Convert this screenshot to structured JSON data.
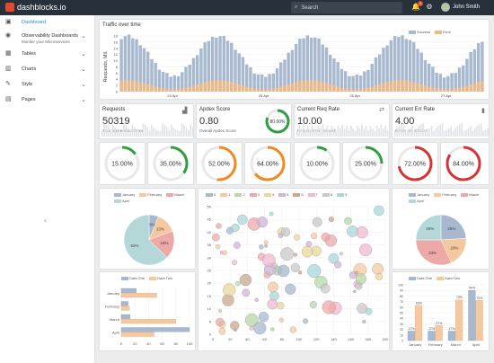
{
  "header": {
    "brand": "dashblocks.io",
    "search_placeholder": "Search",
    "notifications_count": "3",
    "user_name": "John Smith"
  },
  "sidebar": {
    "items": [
      {
        "label": "Dashboard",
        "icon": "dashboard-icon"
      },
      {
        "label": "Observability Dashboards",
        "sub": "Monitor your Microservices",
        "icon": "eye-icon"
      },
      {
        "label": "Tables",
        "icon": "table-icon"
      },
      {
        "label": "Charts",
        "icon": "chart-icon"
      },
      {
        "label": "Style",
        "icon": "brush-icon"
      },
      {
        "label": "Pages",
        "icon": "pages-icon"
      }
    ],
    "collapse_glyph": "‹"
  },
  "traffic": {
    "title": "Traffic over time",
    "ylabel": "Requests, Mil.",
    "legend": [
      "Success",
      "Error"
    ],
    "xticks": [
      "24 Apr",
      "25 Apr",
      "26 Apr",
      "27 Apr"
    ],
    "yticks": [
      "0",
      "2",
      "4",
      "6",
      "8",
      "10",
      "12",
      "14",
      "16",
      "18"
    ],
    "colors": {
      "success": "#a7b8cf",
      "error": "#e8b98a"
    }
  },
  "stats": [
    {
      "title": "Requests",
      "value": "50319",
      "sub": "Total requests received"
    },
    {
      "title": "Apdex Score",
      "value": "0.80",
      "sub": "Overall Apdex Score",
      "ring": "80.00%"
    },
    {
      "title": "Current Req Rate",
      "value": "10.00",
      "sub": "Requests per second"
    },
    {
      "title": "Current Err Rate",
      "value": "4.00",
      "sub": "Errors per second"
    }
  ],
  "rings": [
    {
      "label": "15.00%",
      "pct": 15,
      "color": "#2e9e3e"
    },
    {
      "label": "35.00%",
      "pct": 35,
      "color": "#2e9e3e"
    },
    {
      "label": "52.00%",
      "pct": 52,
      "color": "#f08a24"
    },
    {
      "label": "64.00%",
      "pct": 64,
      "color": "#f08a24"
    },
    {
      "label": "10.00%",
      "pct": 10,
      "color": "#2e9e3e"
    },
    {
      "label": "25.00%",
      "pct": 25,
      "color": "#2e9e3e"
    },
    {
      "label": "72.00%",
      "pct": 72,
      "color": "#d63333"
    },
    {
      "label": "84.00%",
      "pct": 84,
      "color": "#d63333"
    }
  ],
  "chart_data": [
    {
      "type": "pie",
      "legend": [
        "January",
        "February",
        "March",
        "April"
      ],
      "values": [
        6,
        13,
        18,
        62
      ],
      "labels": [
        "6%",
        "13%",
        "18%",
        "62%"
      ],
      "colors": [
        "#a7b8cf",
        "#f5c8a0",
        "#eda8a8",
        "#b4d8d8"
      ]
    },
    {
      "type": "scatter",
      "legend": [
        "0",
        "1",
        "2",
        "3",
        "4",
        "5",
        "6",
        "7",
        "8",
        "9"
      ],
      "xticks": [
        "0",
        "20",
        "40",
        "60",
        "80",
        "100",
        "120",
        "140",
        "160",
        "180",
        "200"
      ],
      "yticks": [
        "0",
        "5",
        "10",
        "15",
        "20",
        "25",
        "30",
        "35",
        "40",
        "45",
        "50"
      ]
    },
    {
      "type": "pie",
      "legend": [
        "January",
        "February",
        "March",
        "April"
      ],
      "values": [
        25,
        20,
        33,
        26
      ],
      "labels": [
        "25%",
        "20%",
        "33%",
        "26%"
      ],
      "colors": [
        "#a7b8cf",
        "#f5c8a0",
        "#eda8a8",
        "#b4d8d8"
      ]
    },
    {
      "type": "bar",
      "orientation": "horizontal",
      "categories": [
        "January",
        "February",
        "March",
        "April"
      ],
      "series": [
        {
          "name": "Data One",
          "values": [
            22,
            10,
            13,
            100
          ]
        },
        {
          "name": "Data Two",
          "values": [
            52,
            12,
            80,
            48
          ]
        }
      ],
      "xticks": [
        "0",
        "20",
        "40",
        "60",
        "80",
        "100"
      ]
    },
    {
      "type": "bar",
      "categories": [
        "January",
        "February",
        "March",
        "April"
      ],
      "series": [
        {
          "name": "Data One",
          "values": [
            17,
            17,
            17,
            90
          ]
        },
        {
          "name": "Data Two",
          "values": [
            63,
            27,
            73,
            72
          ]
        }
      ],
      "labels": [
        [
          "17%",
          "63%"
        ],
        [
          "17%",
          "27%"
        ],
        [
          "17%",
          "73%"
        ],
        [
          "90%",
          "72%"
        ]
      ],
      "yticks": [
        "0",
        "10",
        "20",
        "30",
        "40",
        "50",
        "60",
        "70",
        "80",
        "90",
        "100"
      ]
    }
  ]
}
